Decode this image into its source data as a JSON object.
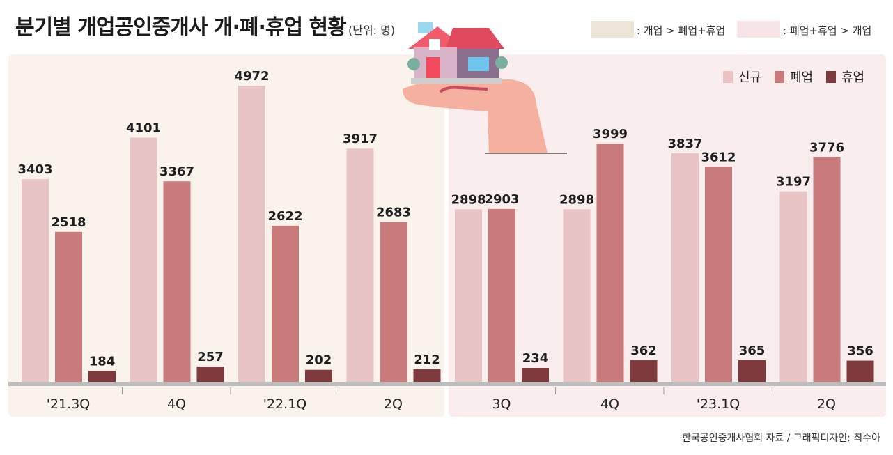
{
  "title": "분기별 개업공인중개사 개·폐·휴업 현황",
  "unit": "(단위: 명)",
  "top_legend": [
    {
      "label": ": 개업 > 폐업+휴업",
      "color": "#efe6da"
    },
    {
      "label": ": 폐업+휴업 > 개업",
      "color": "#f6e4e6"
    }
  ],
  "source": "한국공인중개사협회 자료 / 그래픽디자인: 최수아",
  "chart_data": {
    "type": "bar",
    "categories": [
      "'21.3Q",
      "4Q",
      "'22.1Q",
      "2Q",
      "3Q",
      "4Q",
      "'23.1Q",
      "2Q"
    ],
    "series": [
      {
        "name": "신규",
        "color": "#e8c4c4",
        "values": [
          3403,
          4101,
          4972,
          3917,
          2898,
          2898,
          3837,
          3197
        ]
      },
      {
        "name": "폐업",
        "color": "#c97b7b",
        "values": [
          2518,
          3367,
          2622,
          2683,
          2903,
          3999,
          3612,
          3776
        ]
      },
      {
        "name": "휴업",
        "color": "#7e3a3c",
        "values": [
          184,
          257,
          202,
          212,
          234,
          362,
          365,
          356
        ]
      }
    ],
    "ylim": [
      0,
      5300
    ],
    "legend_position": "top-right",
    "grid": false
  }
}
